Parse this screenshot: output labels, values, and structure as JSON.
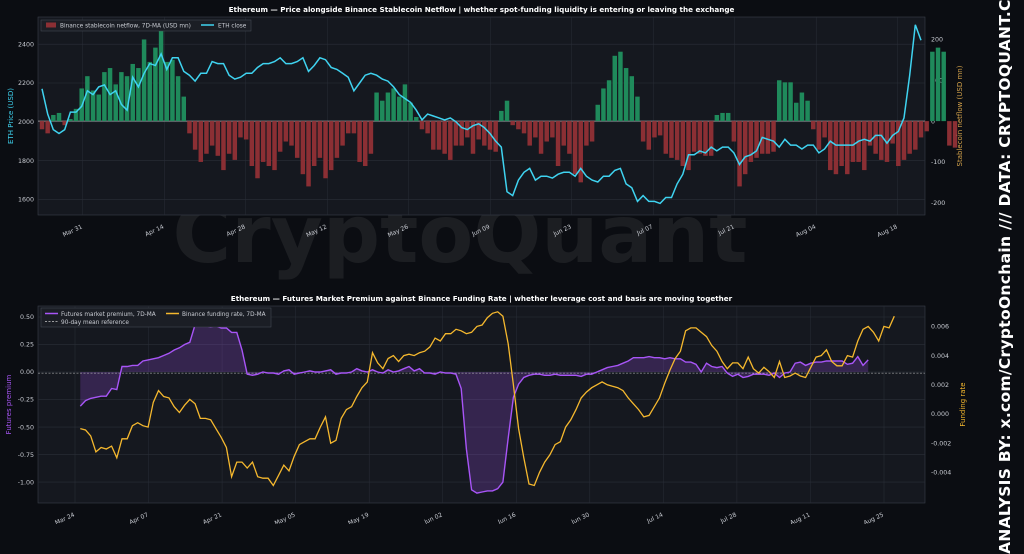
{
  "watermark": "CryptoQuant",
  "side_text": "ANALYSIS BY: x.com/CryptoOnchain   ///   DATA: CRYPTOQUANT.COM",
  "colors": {
    "background": "#0b0d12",
    "panel": "#15181f",
    "grid": "#2a2e38",
    "eth_line": "#3fd3f0",
    "netflow_pos": "#1f8a5b",
    "netflow_neg": "#8b2f34",
    "premium": "#a855f7",
    "funding": "#f5b82e",
    "ref_line": "#c8c8c8"
  },
  "chart_data": [
    {
      "type": "bar+line",
      "title": "Ethereum — Price alongside Binance Stablecoin Netflow  |  whether spot-funding liquidity is entering or leaving the exchange",
      "ylabel_left": "ETH Price (USD)",
      "ylabel_right": "Stablecoin netflow (USD mn)",
      "legend": [
        "Binance stablecoin netflow, 7D-MA (USD mn)",
        "ETH close"
      ],
      "legend_position": "top-left",
      "x_ticks": [
        "Mar 31",
        "Apr 14",
        "Apr 28",
        "May 12",
        "May 26",
        "Jun 09",
        "Jun 23",
        "Jul 07",
        "Jul 21",
        "Aug 04",
        "Aug 18"
      ],
      "ylim_left": [
        1520,
        2540
      ],
      "yticks_left": [
        1600,
        1800,
        2000,
        2200,
        2400
      ],
      "ylim_right": [
        -230,
        255
      ],
      "yticks_right": [
        -200,
        -100,
        0,
        100,
        200
      ],
      "start_date": "2025-03-24",
      "end_date": "2025-08-22",
      "eth_close": [
        2170,
        2040,
        1960,
        1940,
        1960,
        2050,
        2050,
        2080,
        2160,
        2140,
        2180,
        2190,
        2140,
        2160,
        2090,
        2060,
        2230,
        2180,
        2250,
        2300,
        2290,
        2350,
        2270,
        2330,
        2330,
        2260,
        2240,
        2210,
        2250,
        2250,
        2310,
        2300,
        2300,
        2240,
        2220,
        2230,
        2250,
        2250,
        2280,
        2300,
        2300,
        2310,
        2330,
        2300,
        2300,
        2310,
        2330,
        2260,
        2290,
        2330,
        2320,
        2280,
        2270,
        2250,
        2230,
        2160,
        2200,
        2240,
        2250,
        2240,
        2220,
        2210,
        2180,
        2140,
        2120,
        2100,
        2060,
        2010,
        2040,
        2030,
        2020,
        2010,
        2020,
        2000,
        1970,
        1960,
        1980,
        1990,
        1970,
        1940,
        1900,
        1870,
        1640,
        1620,
        1700,
        1740,
        1760,
        1700,
        1720,
        1720,
        1710,
        1730,
        1740,
        1740,
        1720,
        1760,
        1720,
        1700,
        1690,
        1720,
        1720,
        1750,
        1760,
        1680,
        1660,
        1590,
        1620,
        1590,
        1590,
        1580,
        1610,
        1610,
        1680,
        1730,
        1830,
        1830,
        1850,
        1840,
        1870,
        1850,
        1870,
        1870,
        1840,
        1780,
        1820,
        1830,
        1850,
        1920,
        1910,
        1900,
        1870,
        1910,
        1880,
        1880,
        1860,
        1880,
        1880,
        1840,
        1860,
        1900,
        1880,
        1880,
        1880,
        1880,
        1900,
        1910,
        1900,
        1930,
        1930,
        1890,
        1930,
        1950,
        2020,
        2240,
        2500,
        2420
      ],
      "netflow": [
        -20,
        -30,
        15,
        20,
        -10,
        5,
        30,
        80,
        110,
        75,
        65,
        120,
        130,
        90,
        120,
        110,
        140,
        130,
        200,
        145,
        180,
        230,
        145,
        150,
        110,
        60,
        -30,
        -70,
        -100,
        -80,
        -60,
        -85,
        -120,
        -80,
        -95,
        -40,
        -45,
        -110,
        -140,
        -100,
        -110,
        -120,
        -75,
        -50,
        -60,
        -90,
        -130,
        -160,
        -110,
        -90,
        -140,
        -120,
        -90,
        -60,
        -30,
        -30,
        -100,
        -110,
        -80,
        70,
        50,
        70,
        80,
        60,
        90,
        45,
        10,
        -20,
        -30,
        -70,
        -70,
        -80,
        -95,
        -60,
        -60,
        -40,
        -80,
        -45,
        -60,
        -70,
        -75,
        25,
        50,
        -10,
        -20,
        -30,
        -60,
        -40,
        -80,
        -50,
        -40,
        -110,
        -60,
        -80,
        -130,
        -150,
        -60,
        -50,
        40,
        80,
        100,
        160,
        170,
        130,
        110,
        60,
        -50,
        -70,
        -40,
        -35,
        -80,
        -90,
        -95,
        -110,
        -120,
        -75,
        -80,
        -85,
        -85,
        15,
        20,
        20,
        -50,
        -160,
        -130,
        -100,
        -90,
        -80,
        -80,
        -75,
        100,
        95,
        95,
        45,
        70,
        50,
        -20,
        -70,
        -40,
        -120,
        -130,
        -110,
        -130,
        -100,
        -100,
        -120,
        -60,
        -80,
        -95,
        -100,
        -55,
        -110,
        -95,
        -80,
        -70,
        -40,
        -25,
        170,
        180,
        170,
        -60,
        -65
      ]
    },
    {
      "type": "line",
      "title": "Ethereum — Futures Market Premium against Binance Funding Rate  |  whether leverage cost and basis are moving together",
      "ylabel_left": "Futures premium",
      "ylabel_right": "Funding rate",
      "legend": [
        "Futures market premium, 7D-MA",
        "Binance funding rate, 7D-MA",
        "90-day mean reference"
      ],
      "legend_position": "top-left",
      "x_ticks": [
        "Mar 24",
        "Apr 07",
        "Apr 21",
        "May 05",
        "May 19",
        "Jun 02",
        "Jun 16",
        "Jun 30",
        "Jul 14",
        "Jul 28",
        "Aug 11",
        "Aug 25"
      ],
      "ylim_left": [
        -1.19,
        0.6
      ],
      "yticks_left": [
        0.5,
        0.25,
        0.0,
        -0.25,
        -0.5,
        -0.75,
        -1.0
      ],
      "ylim_right": [
        -0.0061,
        0.0074
      ],
      "yticks_right": [
        -0.004,
        -0.002,
        0.0,
        0.002,
        0.004,
        0.006
      ],
      "premium_reference": -0.01,
      "start_date": "2025-03-25",
      "end_date": "2025-08-22",
      "futures_premium": [
        -0.31,
        -0.26,
        -0.24,
        -0.23,
        -0.22,
        -0.22,
        -0.15,
        -0.16,
        0.05,
        0.05,
        0.06,
        0.06,
        0.1,
        0.11,
        0.12,
        0.13,
        0.15,
        0.17,
        0.2,
        0.22,
        0.25,
        0.27,
        0.43,
        0.42,
        0.42,
        0.41,
        0.42,
        0.4,
        0.4,
        0.36,
        0.36,
        0.2,
        -0.02,
        -0.03,
        -0.02,
        0.0,
        -0.01,
        -0.01,
        -0.02,
        0.01,
        0.02,
        -0.02,
        -0.01,
        0.0,
        0.01,
        0.0,
        0.0,
        0.01,
        0.02,
        -0.02,
        -0.01,
        -0.01,
        0.0,
        0.03,
        0.01,
        0.0,
        0.02,
        0.0,
        -0.01,
        0.02,
        0.0,
        0.01,
        0.03,
        0.05,
        0.01,
        0.03,
        -0.01,
        -0.01,
        -0.02,
        0.0,
        -0.01,
        -0.01,
        -0.02,
        -0.15,
        -0.7,
        -1.07,
        -1.1,
        -1.09,
        -1.08,
        -1.08,
        -1.06,
        -1.0,
        -0.6,
        -0.23,
        -0.11,
        -0.05,
        -0.03,
        -0.02,
        -0.02,
        -0.03,
        -0.03,
        -0.02,
        -0.03,
        -0.03,
        -0.03,
        -0.03,
        -0.04,
        -0.02,
        -0.02,
        0.0,
        0.02,
        0.04,
        0.05,
        0.06,
        0.08,
        0.1,
        0.13,
        0.13,
        0.13,
        0.14,
        0.13,
        0.13,
        0.12,
        0.13,
        0.12,
        0.12,
        0.09,
        0.09,
        0.07,
        0.0,
        0.08,
        0.05,
        0.04,
        0.05,
        -0.01,
        -0.04,
        -0.02,
        -0.05,
        -0.04,
        -0.02,
        -0.02,
        -0.02,
        -0.03,
        -0.01,
        -0.05,
        -0.01,
        0.0,
        0.08,
        0.09,
        0.06,
        0.08,
        0.09,
        0.09,
        0.1,
        0.1,
        0.1,
        0.1,
        0.07,
        0.08,
        0.14,
        0.06,
        0.11
      ],
      "funding_rate": [
        -0.001,
        -0.0011,
        -0.0015,
        -0.0026,
        -0.0023,
        -0.0024,
        -0.0022,
        -0.003,
        -0.0017,
        -0.0017,
        -0.0008,
        -0.0006,
        -0.0008,
        -0.0009,
        0.0008,
        0.0016,
        0.0012,
        0.0011,
        0.0005,
        0.0001,
        0.0006,
        0.001,
        0.0007,
        -0.0003,
        -0.0003,
        -0.0004,
        -0.001,
        -0.0016,
        -0.0023,
        -0.0043,
        -0.0033,
        -0.0033,
        -0.0037,
        -0.0033,
        -0.0043,
        -0.0044,
        -0.0044,
        -0.0049,
        -0.0042,
        -0.0035,
        -0.0039,
        -0.0029,
        -0.0021,
        -0.0019,
        -0.0017,
        -0.0017,
        -0.0009,
        -0.0002,
        -0.002,
        -0.0018,
        -0.0003,
        0.0003,
        0.0005,
        0.0012,
        0.0018,
        0.0022,
        0.0042,
        0.0035,
        0.0031,
        0.0038,
        0.004,
        0.0036,
        0.004,
        0.0041,
        0.004,
        0.0042,
        0.0043,
        0.0046,
        0.0052,
        0.005,
        0.0055,
        0.0055,
        0.0058,
        0.0057,
        0.0055,
        0.0056,
        0.006,
        0.0061,
        0.0066,
        0.0069,
        0.007,
        0.0067,
        0.0048,
        0.002,
        -0.001,
        -0.003,
        -0.0048,
        -0.0049,
        -0.004,
        -0.0033,
        -0.0028,
        -0.0021,
        -0.0019,
        -0.0009,
        -0.0004,
        0.0003,
        0.0011,
        0.0015,
        0.0018,
        0.002,
        0.0022,
        0.002,
        0.0019,
        0.0018,
        0.0016,
        0.0011,
        0.0007,
        0.0003,
        -0.0002,
        -0.0001,
        0.0005,
        0.0011,
        0.0021,
        0.003,
        0.0038,
        0.0043,
        0.0057,
        0.0059,
        0.0059,
        0.0056,
        0.0053,
        0.0047,
        0.0043,
        0.0036,
        0.0031,
        0.0035,
        0.0035,
        0.0031,
        0.0039,
        0.0031,
        0.0028,
        0.0032,
        0.0029,
        0.0025,
        0.0036,
        0.0025,
        0.0026,
        0.0028,
        0.0026,
        0.0025,
        0.0032,
        0.0039,
        0.004,
        0.0044,
        0.0036,
        0.0033,
        0.0033,
        0.004,
        0.0039,
        0.005,
        0.0058,
        0.006,
        0.0056,
        0.005,
        0.006,
        0.0059,
        0.0067
      ]
    }
  ]
}
